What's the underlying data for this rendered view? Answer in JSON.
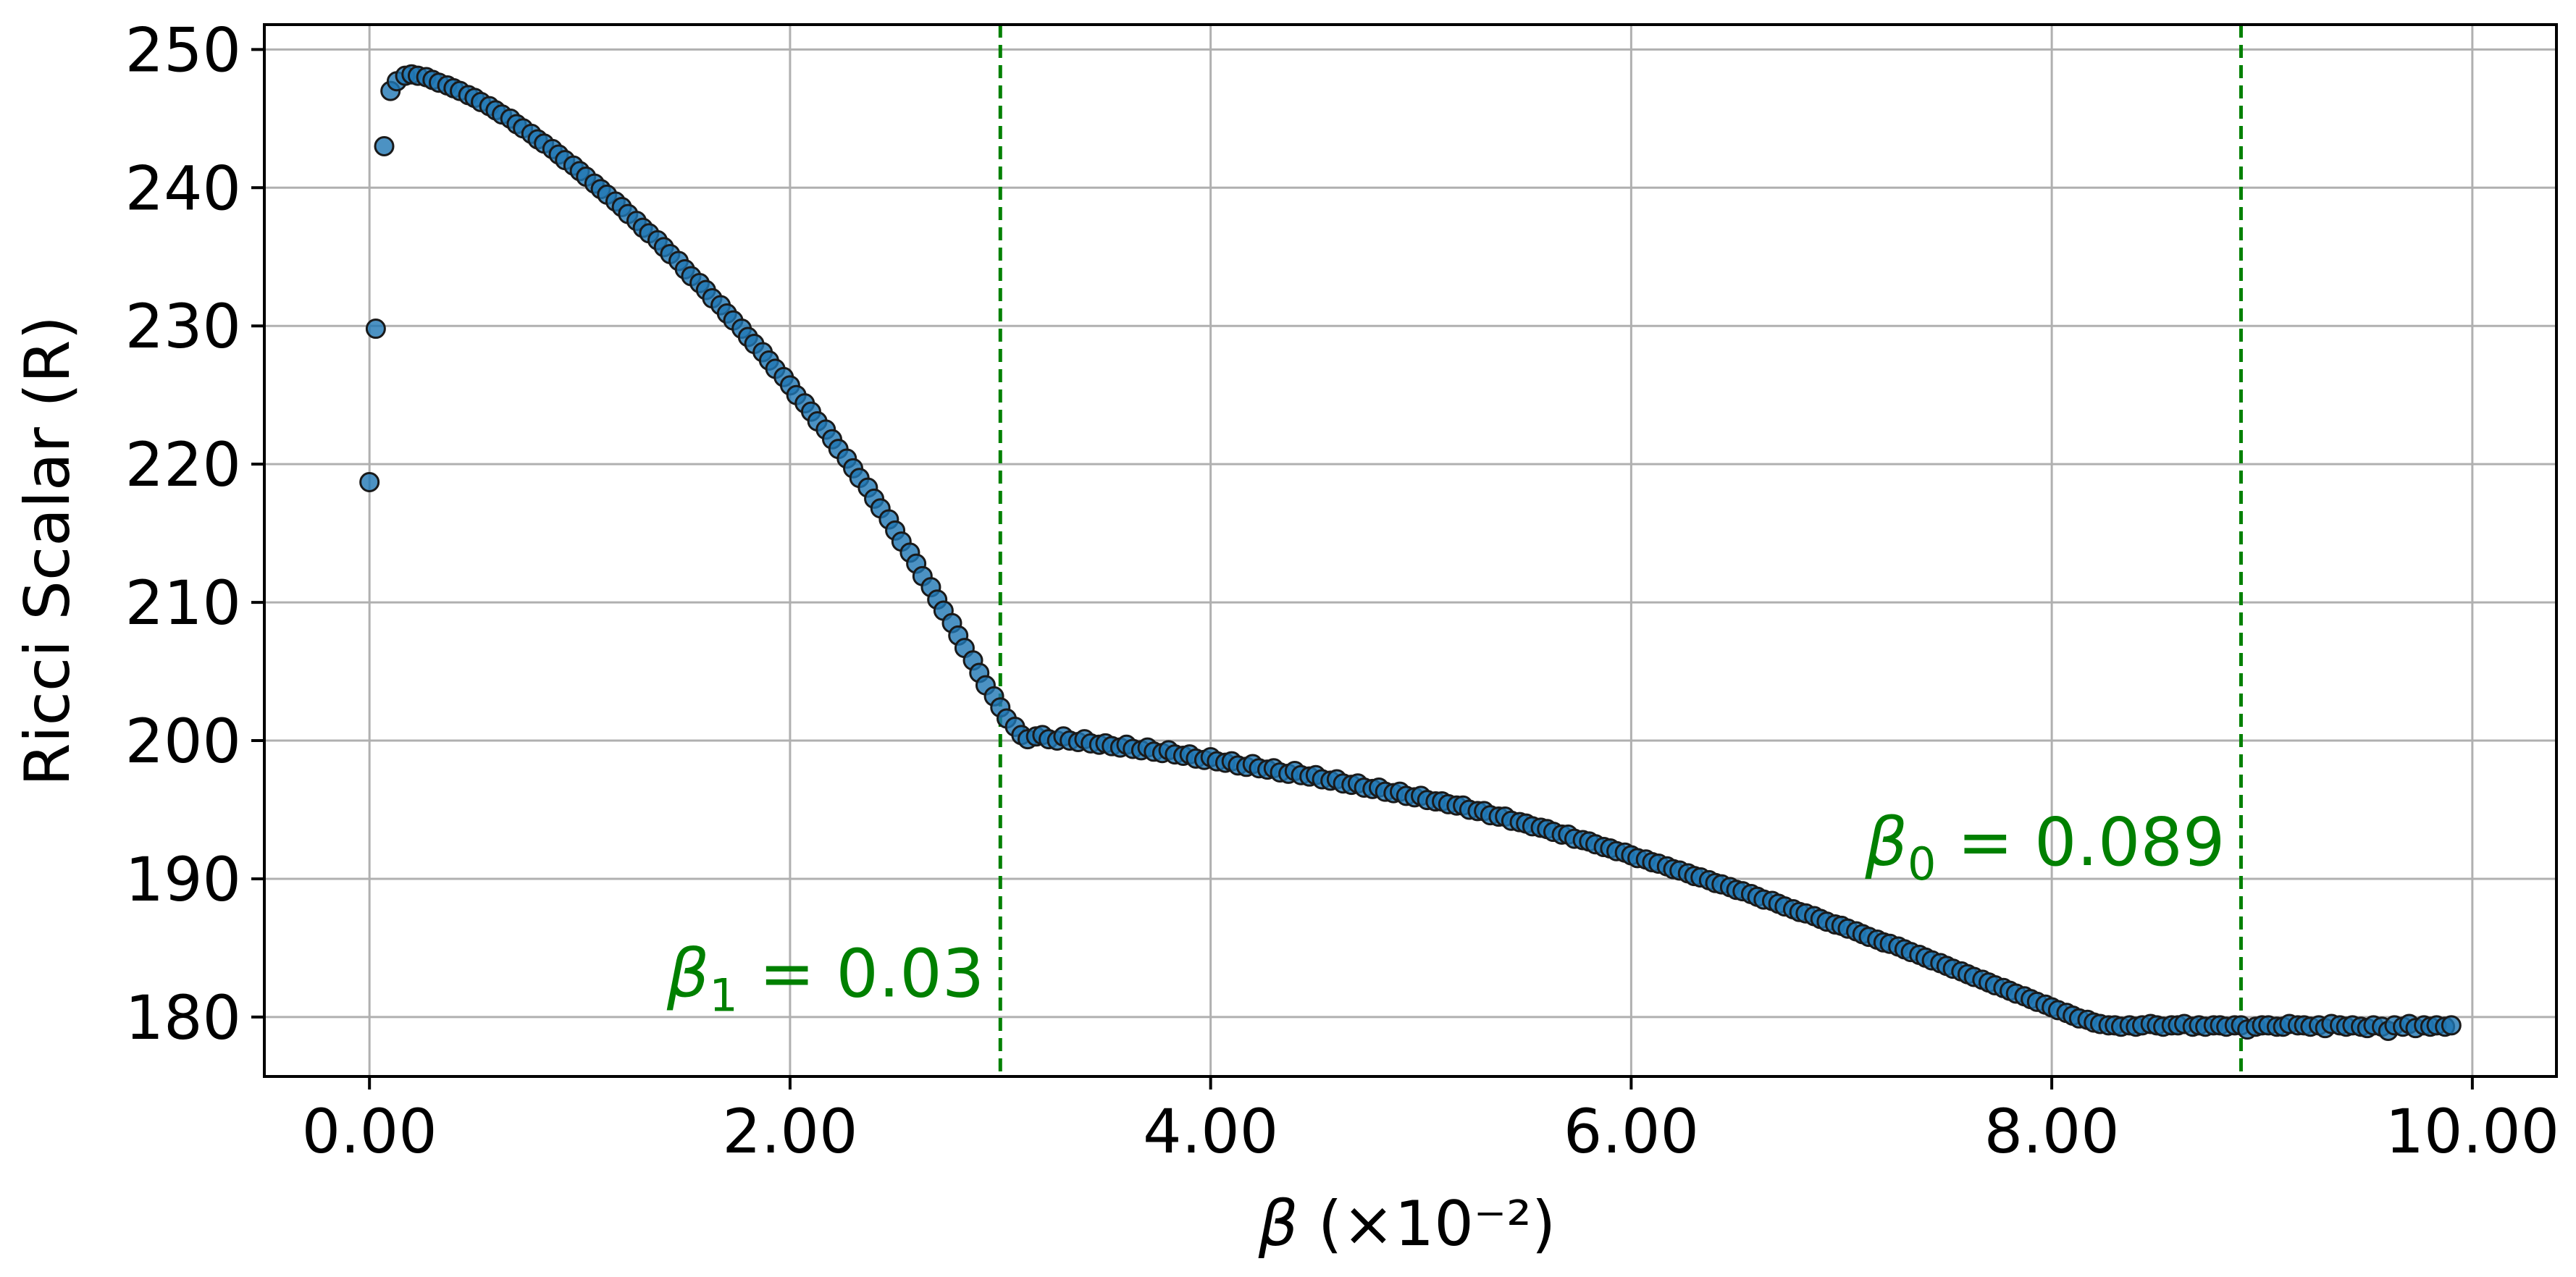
{
  "chart_data": {
    "type": "scatter",
    "xlabel_symbol": "β",
    "xlabel_suffix": " (×10⁻²)",
    "ylabel": "Ricci Scalar (R)",
    "xlim": [
      -0.5,
      10.4
    ],
    "ylim": [
      175.7,
      251.8
    ],
    "x_ticks": [
      0,
      2,
      4,
      6,
      8,
      10
    ],
    "x_tick_labels": [
      "0.00",
      "2.00",
      "4.00",
      "6.00",
      "8.00",
      "10.00"
    ],
    "y_ticks": [
      180,
      190,
      200,
      210,
      220,
      230,
      240,
      250
    ],
    "y_tick_labels": [
      "180",
      "190",
      "200",
      "210",
      "220",
      "230",
      "240",
      "250"
    ],
    "grid": true,
    "marker_color": "#1f77b4",
    "annotation_color": "#008000",
    "vertical_lines": [
      {
        "x": 3.0,
        "label_base": "β",
        "label_sub": "1",
        "label_value": " = 0.03",
        "label_side": "left",
        "label_y": 181.5
      },
      {
        "x": 8.9,
        "label_base": "β",
        "label_sub": "0",
        "label_value": " = 0.089",
        "label_side": "left",
        "label_y": 191.0
      }
    ],
    "series": [
      {
        "points": [
          [
            0.0,
            218.7
          ],
          [
            0.03,
            229.8
          ],
          [
            0.07,
            243.0
          ],
          [
            0.1,
            247.0
          ],
          [
            0.13,
            247.7
          ],
          [
            0.17,
            248.1
          ],
          [
            0.2,
            248.2
          ],
          [
            0.23,
            248.1
          ],
          [
            0.27,
            248.0
          ],
          [
            0.3,
            247.8
          ],
          [
            0.33,
            247.6
          ],
          [
            0.37,
            247.4
          ],
          [
            0.4,
            247.2
          ],
          [
            0.43,
            247.0
          ],
          [
            0.47,
            246.7
          ],
          [
            0.5,
            246.5
          ],
          [
            0.53,
            246.2
          ],
          [
            0.57,
            245.9
          ],
          [
            0.6,
            245.6
          ],
          [
            0.63,
            245.3
          ],
          [
            0.67,
            245.0
          ],
          [
            0.7,
            244.6
          ],
          [
            0.73,
            244.3
          ],
          [
            0.77,
            243.9
          ],
          [
            0.8,
            243.5
          ],
          [
            0.83,
            243.2
          ],
          [
            0.87,
            242.8
          ],
          [
            0.9,
            242.4
          ],
          [
            0.93,
            242.0
          ],
          [
            0.97,
            241.6
          ],
          [
            1.0,
            241.2
          ],
          [
            1.03,
            240.8
          ],
          [
            1.07,
            240.3
          ],
          [
            1.1,
            239.9
          ],
          [
            1.13,
            239.5
          ],
          [
            1.17,
            239.0
          ],
          [
            1.2,
            238.6
          ],
          [
            1.23,
            238.1
          ],
          [
            1.27,
            237.6
          ],
          [
            1.3,
            237.1
          ],
          [
            1.33,
            236.7
          ],
          [
            1.37,
            236.2
          ],
          [
            1.4,
            235.7
          ],
          [
            1.43,
            235.2
          ],
          [
            1.47,
            234.7
          ],
          [
            1.5,
            234.1
          ],
          [
            1.53,
            233.6
          ],
          [
            1.57,
            233.1
          ],
          [
            1.6,
            232.6
          ],
          [
            1.63,
            232.0
          ],
          [
            1.67,
            231.5
          ],
          [
            1.7,
            230.9
          ],
          [
            1.73,
            230.4
          ],
          [
            1.77,
            229.8
          ],
          [
            1.8,
            229.2
          ],
          [
            1.83,
            228.7
          ],
          [
            1.87,
            228.1
          ],
          [
            1.9,
            227.5
          ],
          [
            1.93,
            226.9
          ],
          [
            1.97,
            226.3
          ],
          [
            2.0,
            225.7
          ],
          [
            2.03,
            225.0
          ],
          [
            2.07,
            224.4
          ],
          [
            2.1,
            223.8
          ],
          [
            2.13,
            223.1
          ],
          [
            2.17,
            222.5
          ],
          [
            2.2,
            221.8
          ],
          [
            2.23,
            221.1
          ],
          [
            2.27,
            220.4
          ],
          [
            2.3,
            219.7
          ],
          [
            2.33,
            219.0
          ],
          [
            2.37,
            218.3
          ],
          [
            2.4,
            217.5
          ],
          [
            2.43,
            216.8
          ],
          [
            2.47,
            216.0
          ],
          [
            2.5,
            215.2
          ],
          [
            2.53,
            214.4
          ],
          [
            2.57,
            213.6
          ],
          [
            2.6,
            212.8
          ],
          [
            2.63,
            211.9
          ],
          [
            2.67,
            211.1
          ],
          [
            2.7,
            210.2
          ],
          [
            2.73,
            209.4
          ],
          [
            2.77,
            208.5
          ],
          [
            2.8,
            207.6
          ],
          [
            2.83,
            206.7
          ],
          [
            2.87,
            205.8
          ],
          [
            2.9,
            204.9
          ],
          [
            2.93,
            204.0
          ],
          [
            2.97,
            203.2
          ],
          [
            3.0,
            202.4
          ],
          [
            3.03,
            201.6
          ],
          [
            3.07,
            201.0
          ],
          [
            3.1,
            200.4
          ],
          [
            3.13,
            200.1
          ],
          [
            3.17,
            200.3
          ],
          [
            3.2,
            200.4
          ],
          [
            3.23,
            200.1
          ],
          [
            3.27,
            200.0
          ],
          [
            3.3,
            200.3
          ],
          [
            3.33,
            200.0
          ],
          [
            3.37,
            199.9
          ],
          [
            3.4,
            200.1
          ],
          [
            3.43,
            199.8
          ],
          [
            3.47,
            199.7
          ],
          [
            3.5,
            199.8
          ],
          [
            3.53,
            199.6
          ],
          [
            3.57,
            199.5
          ],
          [
            3.6,
            199.7
          ],
          [
            3.63,
            199.4
          ],
          [
            3.67,
            199.3
          ],
          [
            3.7,
            199.5
          ],
          [
            3.73,
            199.2
          ],
          [
            3.77,
            199.1
          ],
          [
            3.8,
            199.3
          ],
          [
            3.83,
            199.0
          ],
          [
            3.87,
            198.9
          ],
          [
            3.9,
            199.0
          ],
          [
            3.93,
            198.7
          ],
          [
            3.97,
            198.6
          ],
          [
            4.0,
            198.8
          ],
          [
            4.03,
            198.5
          ],
          [
            4.07,
            198.4
          ],
          [
            4.1,
            198.5
          ],
          [
            4.13,
            198.2
          ],
          [
            4.17,
            198.1
          ],
          [
            4.2,
            198.3
          ],
          [
            4.23,
            198.0
          ],
          [
            4.27,
            197.9
          ],
          [
            4.3,
            198.0
          ],
          [
            4.33,
            197.7
          ],
          [
            4.37,
            197.6
          ],
          [
            4.4,
            197.8
          ],
          [
            4.43,
            197.5
          ],
          [
            4.47,
            197.4
          ],
          [
            4.5,
            197.5
          ],
          [
            4.53,
            197.2
          ],
          [
            4.57,
            197.1
          ],
          [
            4.6,
            197.2
          ],
          [
            4.63,
            196.9
          ],
          [
            4.67,
            196.8
          ],
          [
            4.7,
            196.9
          ],
          [
            4.73,
            196.6
          ],
          [
            4.77,
            196.5
          ],
          [
            4.8,
            196.6
          ],
          [
            4.83,
            196.3
          ],
          [
            4.87,
            196.2
          ],
          [
            4.9,
            196.3
          ],
          [
            4.93,
            196.0
          ],
          [
            4.97,
            195.9
          ],
          [
            5.0,
            196.0
          ],
          [
            5.03,
            195.7
          ],
          [
            5.07,
            195.6
          ],
          [
            5.1,
            195.6
          ],
          [
            5.13,
            195.4
          ],
          [
            5.17,
            195.3
          ],
          [
            5.2,
            195.3
          ],
          [
            5.23,
            195.0
          ],
          [
            5.27,
            194.9
          ],
          [
            5.3,
            194.9
          ],
          [
            5.33,
            194.6
          ],
          [
            5.37,
            194.5
          ],
          [
            5.4,
            194.5
          ],
          [
            5.43,
            194.2
          ],
          [
            5.47,
            194.1
          ],
          [
            5.5,
            194.0
          ],
          [
            5.53,
            193.8
          ],
          [
            5.57,
            193.7
          ],
          [
            5.6,
            193.6
          ],
          [
            5.63,
            193.4
          ],
          [
            5.67,
            193.2
          ],
          [
            5.7,
            193.2
          ],
          [
            5.73,
            192.9
          ],
          [
            5.77,
            192.8
          ],
          [
            5.8,
            192.7
          ],
          [
            5.83,
            192.5
          ],
          [
            5.87,
            192.3
          ],
          [
            5.9,
            192.2
          ],
          [
            5.93,
            192.0
          ],
          [
            5.97,
            191.9
          ],
          [
            6.0,
            191.7
          ],
          [
            6.03,
            191.5
          ],
          [
            6.07,
            191.4
          ],
          [
            6.1,
            191.2
          ],
          [
            6.13,
            191.1
          ],
          [
            6.17,
            190.9
          ],
          [
            6.2,
            190.7
          ],
          [
            6.23,
            190.6
          ],
          [
            6.27,
            190.4
          ],
          [
            6.3,
            190.2
          ],
          [
            6.33,
            190.1
          ],
          [
            6.37,
            189.9
          ],
          [
            6.4,
            189.7
          ],
          [
            6.43,
            189.6
          ],
          [
            6.47,
            189.4
          ],
          [
            6.5,
            189.2
          ],
          [
            6.53,
            189.1
          ],
          [
            6.57,
            188.9
          ],
          [
            6.6,
            188.7
          ],
          [
            6.63,
            188.5
          ],
          [
            6.67,
            188.4
          ],
          [
            6.7,
            188.2
          ],
          [
            6.73,
            188.0
          ],
          [
            6.77,
            187.8
          ],
          [
            6.8,
            187.6
          ],
          [
            6.83,
            187.5
          ],
          [
            6.87,
            187.3
          ],
          [
            6.9,
            187.1
          ],
          [
            6.93,
            186.9
          ],
          [
            6.97,
            186.7
          ],
          [
            7.0,
            186.6
          ],
          [
            7.03,
            186.4
          ],
          [
            7.07,
            186.2
          ],
          [
            7.1,
            186.0
          ],
          [
            7.13,
            185.8
          ],
          [
            7.17,
            185.6
          ],
          [
            7.2,
            185.4
          ],
          [
            7.23,
            185.3
          ],
          [
            7.27,
            185.1
          ],
          [
            7.3,
            184.9
          ],
          [
            7.33,
            184.7
          ],
          [
            7.37,
            184.5
          ],
          [
            7.4,
            184.3
          ],
          [
            7.43,
            184.1
          ],
          [
            7.47,
            183.9
          ],
          [
            7.5,
            183.7
          ],
          [
            7.53,
            183.5
          ],
          [
            7.57,
            183.3
          ],
          [
            7.6,
            183.1
          ],
          [
            7.63,
            182.9
          ],
          [
            7.67,
            182.7
          ],
          [
            7.7,
            182.5
          ],
          [
            7.73,
            182.3
          ],
          [
            7.77,
            182.1
          ],
          [
            7.8,
            181.9
          ],
          [
            7.83,
            181.7
          ],
          [
            7.87,
            181.5
          ],
          [
            7.9,
            181.3
          ],
          [
            7.93,
            181.1
          ],
          [
            7.97,
            180.9
          ],
          [
            8.0,
            180.7
          ],
          [
            8.03,
            180.5
          ],
          [
            8.07,
            180.3
          ],
          [
            8.1,
            180.1
          ],
          [
            8.13,
            179.9
          ],
          [
            8.17,
            179.8
          ],
          [
            8.2,
            179.6
          ],
          [
            8.23,
            179.5
          ],
          [
            8.27,
            179.4
          ],
          [
            8.3,
            179.4
          ],
          [
            8.33,
            179.3
          ],
          [
            8.37,
            179.4
          ],
          [
            8.4,
            179.3
          ],
          [
            8.43,
            179.4
          ],
          [
            8.47,
            179.5
          ],
          [
            8.5,
            179.4
          ],
          [
            8.53,
            179.3
          ],
          [
            8.57,
            179.4
          ],
          [
            8.6,
            179.4
          ],
          [
            8.63,
            179.5
          ],
          [
            8.67,
            179.3
          ],
          [
            8.7,
            179.4
          ],
          [
            8.73,
            179.3
          ],
          [
            8.77,
            179.4
          ],
          [
            8.8,
            179.4
          ],
          [
            8.83,
            179.3
          ],
          [
            8.87,
            179.4
          ],
          [
            8.9,
            179.4
          ],
          [
            8.93,
            179.1
          ],
          [
            8.97,
            179.3
          ],
          [
            9.0,
            179.4
          ],
          [
            9.03,
            179.4
          ],
          [
            9.07,
            179.3
          ],
          [
            9.1,
            179.3
          ],
          [
            9.13,
            179.5
          ],
          [
            9.17,
            179.4
          ],
          [
            9.2,
            179.4
          ],
          [
            9.23,
            179.3
          ],
          [
            9.27,
            179.4
          ],
          [
            9.3,
            179.2
          ],
          [
            9.33,
            179.5
          ],
          [
            9.37,
            179.4
          ],
          [
            9.4,
            179.3
          ],
          [
            9.43,
            179.4
          ],
          [
            9.47,
            179.3
          ],
          [
            9.5,
            179.2
          ],
          [
            9.53,
            179.4
          ],
          [
            9.57,
            179.3
          ],
          [
            9.6,
            179.0
          ],
          [
            9.63,
            179.4
          ],
          [
            9.67,
            179.3
          ],
          [
            9.7,
            179.5
          ],
          [
            9.73,
            179.2
          ],
          [
            9.77,
            179.4
          ],
          [
            9.8,
            179.3
          ],
          [
            9.83,
            179.4
          ],
          [
            9.87,
            179.3
          ],
          [
            9.9,
            179.4
          ]
        ]
      }
    ]
  }
}
